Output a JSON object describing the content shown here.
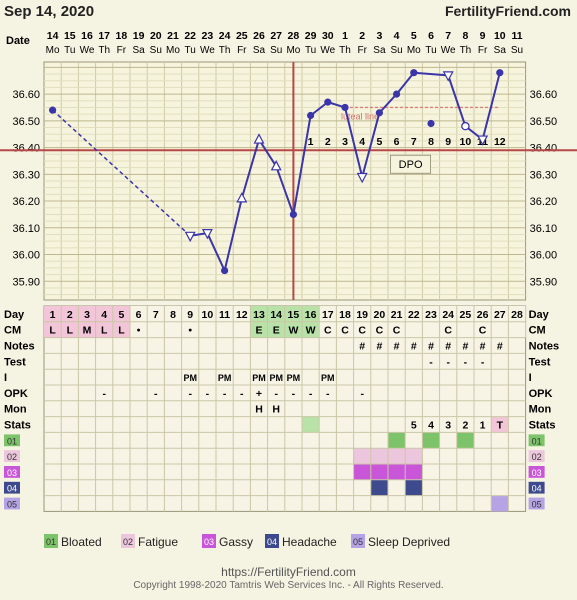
{
  "header": {
    "date": "Sep 14, 2020",
    "site": "FertilityFriend.com"
  },
  "chart_data": {
    "type": "line",
    "date_row_label": "Date",
    "dates": [
      "14",
      "15",
      "16",
      "17",
      "18",
      "19",
      "20",
      "21",
      "22",
      "23",
      "24",
      "25",
      "26",
      "27",
      "28",
      "29",
      "30",
      "1",
      "2",
      "3",
      "4",
      "5",
      "6",
      "7",
      "8",
      "9",
      "10",
      "11"
    ],
    "weekdays": [
      "Mo",
      "Tu",
      "We",
      "Th",
      "Fr",
      "Sa",
      "Su",
      "Mo",
      "Tu",
      "We",
      "Th",
      "Fr",
      "Sa",
      "Su",
      "Mo",
      "Tu",
      "We",
      "Th",
      "Fr",
      "Sa",
      "Su",
      "Mo",
      "Tu",
      "We",
      "Th",
      "Fr",
      "Sa",
      "Su"
    ],
    "y_ticks": [
      "36.60",
      "36.50",
      "36.40",
      "36.30",
      "36.20",
      "36.10",
      "36.00",
      "35.90"
    ],
    "ylim": [
      35.83,
      36.72
    ],
    "temps": [
      36.54,
      null,
      null,
      null,
      null,
      null,
      null,
      null,
      36.07,
      36.08,
      35.94,
      36.21,
      36.43,
      36.33,
      36.15,
      36.52,
      36.57,
      36.55,
      36.29,
      36.53,
      36.6,
      36.68,
      36.49,
      36.67,
      36.48,
      36.43,
      36.68,
      null
    ],
    "marker": [
      "dot",
      "",
      "",
      "",
      "",
      "",
      "",
      "",
      "tri",
      "tri",
      "dot",
      "tri",
      "tri",
      "tri",
      "dot",
      "dot",
      "dot",
      "dot",
      "tri",
      "dot",
      "dot",
      "dot",
      "dot",
      "tri",
      "circ",
      "tri",
      "dot",
      ""
    ],
    "dashed_segments": [
      [
        0,
        8
      ]
    ],
    "isolated_points": [
      22
    ],
    "coverline": 36.39,
    "ovulation_day_index": 14,
    "luteal_line_label": "luteal line",
    "luteal_line_value": 36.55,
    "dpo_label": "DPO",
    "dpo_numbers": [
      "1",
      "2",
      "3",
      "4",
      "5",
      "6",
      "7",
      "8",
      "9",
      "10",
      "11",
      "12"
    ],
    "grid": true,
    "rows": {
      "day": {
        "label": "Day",
        "values": [
          "1",
          "2",
          "3",
          "4",
          "5",
          "6",
          "7",
          "8",
          "9",
          "10",
          "11",
          "12",
          "13",
          "14",
          "15",
          "16",
          "17",
          "18",
          "19",
          "20",
          "21",
          "22",
          "23",
          "24",
          "25",
          "26",
          "27",
          "28"
        ]
      },
      "cm": {
        "label": "CM",
        "values": [
          "L",
          "L",
          "M",
          "L",
          "L",
          "•",
          "",
          "",
          "•",
          "",
          "",
          "",
          "E",
          "E",
          "W",
          "W",
          "C",
          "C",
          "C",
          "C",
          "C",
          "",
          "",
          "C",
          "",
          "C",
          "",
          ""
        ]
      },
      "notes": {
        "label": "Notes",
        "values": [
          "",
          "",
          "",
          "",
          "",
          "",
          "",
          "",
          "",
          "",
          "",
          "",
          "",
          "",
          "",
          "",
          "",
          "",
          "#",
          "#",
          "#",
          "#",
          "#",
          "#",
          "#",
          "#",
          "#",
          ""
        ]
      },
      "test": {
        "label": "Test",
        "values": [
          "",
          "",
          "",
          "",
          "",
          "",
          "",
          "",
          "",
          "",
          "",
          "",
          "",
          "",
          "",
          "",
          "",
          "",
          "",
          "",
          "",
          "",
          "-",
          "-",
          "-",
          "-",
          "",
          ""
        ]
      },
      "i": {
        "label": "I",
        "values": [
          "",
          "",
          "",
          "",
          "",
          "",
          "",
          "",
          "PM",
          "",
          "PM",
          "",
          "PM",
          "PM",
          "PM",
          "",
          "PM",
          "",
          "",
          "",
          "",
          "",
          "",
          "",
          "",
          "",
          "",
          ""
        ]
      },
      "opk": {
        "label": "OPK",
        "values": [
          "",
          "",
          "",
          "-",
          "",
          "",
          "-",
          "",
          "-",
          "-",
          "-",
          "-",
          "+",
          "-",
          "-",
          "-",
          "-",
          "",
          "-",
          "",
          "",
          "",
          "",
          "",
          "",
          "",
          "",
          ""
        ]
      },
      "mon": {
        "label": "Mon",
        "values": [
          "",
          "",
          "",
          "",
          "",
          "",
          "",
          "",
          "",
          "",
          "",
          "",
          "H",
          "H",
          "",
          "",
          "",
          "",
          "",
          "",
          "",
          "",
          "",
          "",
          "",
          "",
          "",
          ""
        ]
      },
      "stats": {
        "label": "Stats",
        "values": [
          "",
          "",
          "",
          "",
          "",
          "",
          "",
          "",
          "",
          "",
          "",
          "",
          "",
          "",
          "",
          "",
          "",
          "",
          "",
          "",
          "",
          "5",
          "4",
          "3",
          "2",
          "1",
          "T",
          ""
        ]
      }
    },
    "symptoms": [
      {
        "code": "01",
        "name": "Bloated",
        "color": "#7cc36a",
        "days": [
          20,
          22,
          24
        ]
      },
      {
        "code": "02",
        "name": "Fatigue",
        "color": "#ecc6dc",
        "days": [
          18,
          19,
          20,
          21
        ]
      },
      {
        "code": "03",
        "name": "Gassy",
        "color": "#c955d9",
        "days": [
          18,
          19,
          20,
          21
        ]
      },
      {
        "code": "04",
        "name": "Headache",
        "color": "#3e4a8e",
        "days": [
          19,
          21
        ]
      },
      {
        "code": "05",
        "name": "Sleep Deprived",
        "color": "#b5a3e6",
        "days": [
          26
        ]
      }
    ]
  },
  "footer": {
    "url": "https://FertilityFriend.com",
    "copyright": "Copyright 1998-2020 Tamtris Web Services Inc. - All Rights Reserved."
  }
}
